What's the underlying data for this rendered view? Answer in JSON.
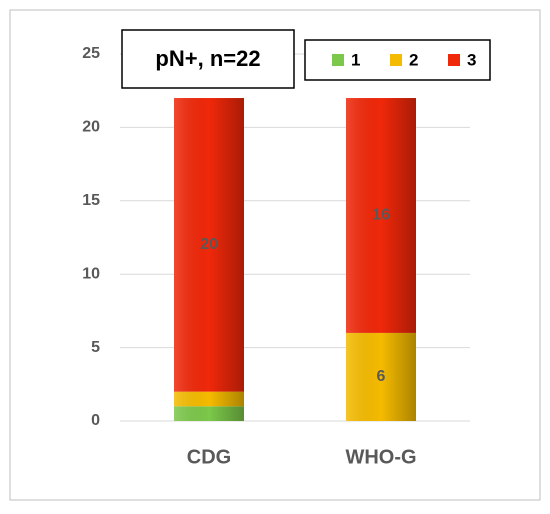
{
  "chart_data": {
    "type": "stacked_bar",
    "title": "pN+, n=22",
    "categories": [
      "CDG",
      "WHO-G"
    ],
    "series": [
      {
        "name": "1",
        "color": "#7cc84a",
        "values": [
          1,
          0
        ]
      },
      {
        "name": "2",
        "color": "#f5bb00",
        "values": [
          1,
          6
        ],
        "value_labels": [
          null,
          "6"
        ]
      },
      {
        "name": "3",
        "color": "#f0280a",
        "values": [
          20,
          16
        ],
        "value_labels": [
          "20",
          "16"
        ]
      }
    ],
    "ylim": [
      0,
      25
    ],
    "yticks": [
      0,
      5,
      10,
      15,
      20,
      25
    ],
    "grid": true,
    "legend": "top-right"
  }
}
